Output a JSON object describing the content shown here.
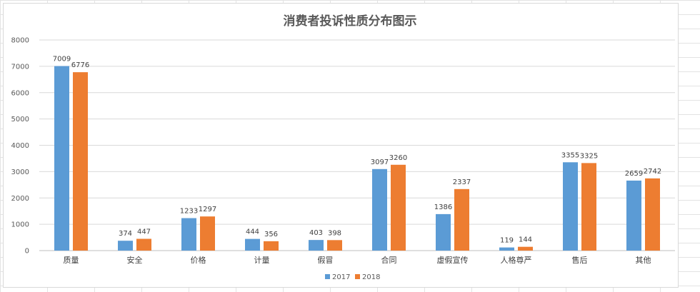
{
  "chart_data": {
    "type": "bar",
    "title": "消费者投诉性质分布图示",
    "categories": [
      "质量",
      "安全",
      "价格",
      "计量",
      "假冒",
      "合同",
      "虚假宣传",
      "人格尊严",
      "售后",
      "其他"
    ],
    "series": [
      {
        "name": "2017",
        "color": "#5b9bd5",
        "values": [
          7009,
          374,
          1233,
          444,
          403,
          3097,
          1386,
          119,
          3355,
          2659
        ]
      },
      {
        "name": "2018",
        "color": "#ed7d31",
        "values": [
          6776,
          447,
          1297,
          356,
          398,
          3260,
          2337,
          144,
          3325,
          2742
        ]
      }
    ],
    "ylim": [
      0,
      8000
    ],
    "yticks": [
      "0",
      "1000",
      "2000",
      "3000",
      "4000",
      "5000",
      "6000",
      "7000",
      "8000"
    ],
    "grid": true,
    "legend": "bottom"
  }
}
